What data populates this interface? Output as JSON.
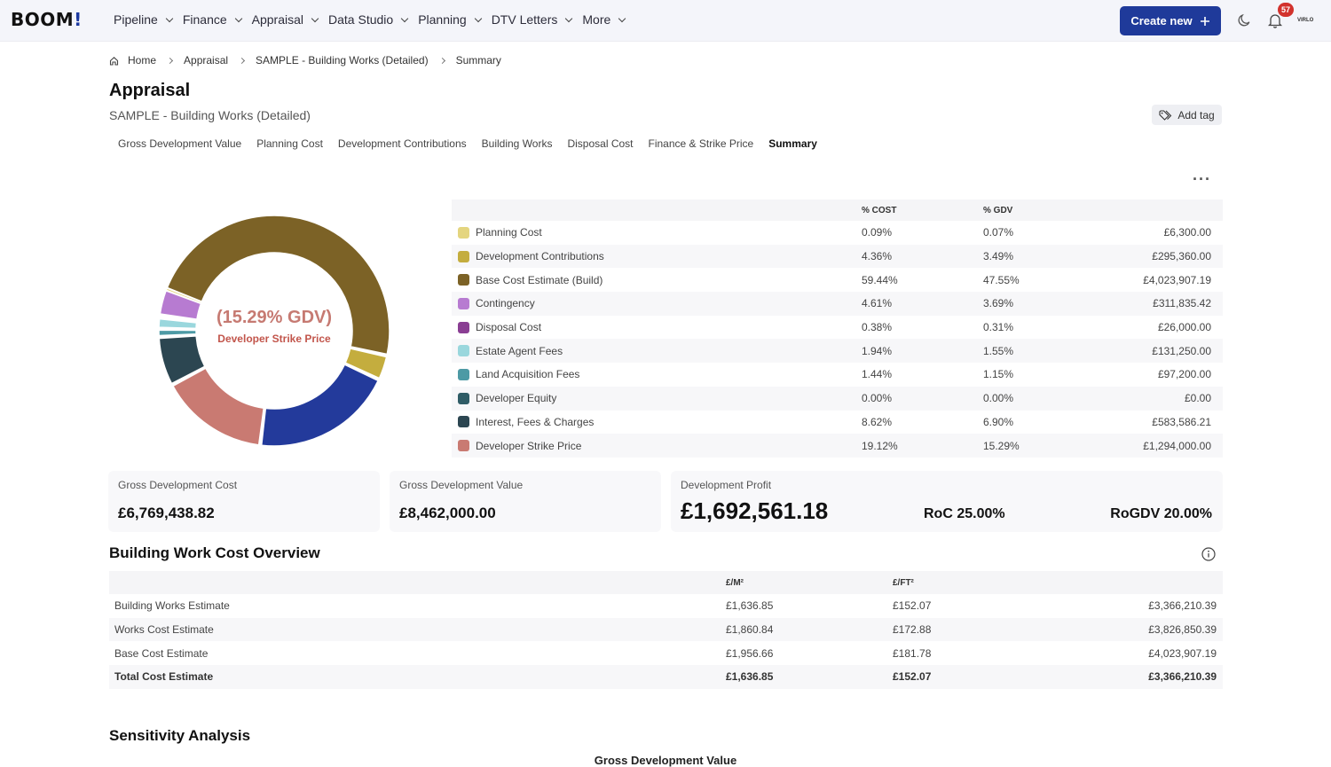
{
  "topbar": {
    "logo": "BOOM",
    "logo_bang": "!",
    "nav": [
      "Pipeline",
      "Finance",
      "Appraisal",
      "Data Studio",
      "Planning",
      "DTV Letters",
      "More"
    ],
    "create_label": "Create new",
    "notification_count": "57",
    "avatar_text": "VIRLO"
  },
  "breadcrumb": {
    "home": "Home",
    "items": [
      "Appraisal",
      "SAMPLE - Building Works (Detailed)",
      "Summary"
    ]
  },
  "page": {
    "title": "Appraisal",
    "subtitle": "SAMPLE - Building Works (Detailed)",
    "add_tag": "Add tag"
  },
  "tabs": [
    "Gross Development Value",
    "Planning Cost",
    "Development Contributions",
    "Building Works",
    "Disposal Cost",
    "Finance & Strike Price",
    "Summary"
  ],
  "active_tab": "Summary",
  "donut": {
    "center_main": "(15.29% GDV)",
    "center_sub": "Developer Strike Price"
  },
  "cost_table": {
    "headers": {
      "label": "",
      "pct_cost": "% COST",
      "pct_gdv": "% GDV",
      "amount": ""
    },
    "rows": [
      {
        "label": "Planning Cost",
        "color": "#e4d57f",
        "pct_cost": "0.09%",
        "pct_gdv": "0.07%",
        "amount": "£6,300.00",
        "share": 0.07
      },
      {
        "label": "Development Contributions",
        "color": "#c4ad3e",
        "pct_cost": "4.36%",
        "pct_gdv": "3.49%",
        "amount": "£295,360.00",
        "share": 3.49
      },
      {
        "label": "Base Cost Estimate (Build)",
        "color": "#7c6226",
        "pct_cost": "59.44%",
        "pct_gdv": "47.55%",
        "amount": "£4,023,907.19",
        "share": 47.55
      },
      {
        "label": "Contingency",
        "color": "#b77bd1",
        "pct_cost": "4.61%",
        "pct_gdv": "3.69%",
        "amount": "£311,835.42",
        "share": 3.69
      },
      {
        "label": "Disposal Cost",
        "color": "#8a3e93",
        "pct_cost": "0.38%",
        "pct_gdv": "0.31%",
        "amount": "£26,000.00",
        "share": 0.31
      },
      {
        "label": "Estate Agent Fees",
        "color": "#9ad7dd",
        "pct_cost": "1.94%",
        "pct_gdv": "1.55%",
        "amount": "£131,250.00",
        "share": 1.55
      },
      {
        "label": "Land Acquisition Fees",
        "color": "#4d9aa5",
        "pct_cost": "1.44%",
        "pct_gdv": "1.15%",
        "amount": "£97,200.00",
        "share": 1.15
      },
      {
        "label": "Developer Equity",
        "color": "#2f5c66",
        "pct_cost": "0.00%",
        "pct_gdv": "0.00%",
        "amount": "£0.00",
        "share": 0.0
      },
      {
        "label": "Interest, Fees & Charges",
        "color": "#2c4651",
        "pct_cost": "8.62%",
        "pct_gdv": "6.90%",
        "amount": "£583,586.21",
        "share": 6.9
      },
      {
        "label": "Developer Strike Price",
        "color": "#c97a72",
        "pct_cost": "19.12%",
        "pct_gdv": "15.29%",
        "amount": "£1,294,000.00",
        "share": 15.29
      }
    ],
    "remaining_color": "#233a9b",
    "remaining_share": 20.0
  },
  "cards": {
    "gdc_label": "Gross Development Cost",
    "gdc_value": "£6,769,438.82",
    "gdv_label": "Gross Development Value",
    "gdv_value": "£8,462,000.00",
    "profit_label": "Development Profit",
    "profit_value": "£1,692,561.18",
    "roc": "RoC 25.00%",
    "rogdv": "RoGDV 20.00%"
  },
  "building_works": {
    "title": "Building Work Cost Overview",
    "headers": {
      "label": "",
      "m2": "£/M²",
      "ft2": "£/FT²",
      "total": ""
    },
    "rows": [
      {
        "label": "Building Works Estimate",
        "m2": "£1,636.85",
        "ft2": "£152.07",
        "total": "£3,366,210.39"
      },
      {
        "label": "Works Cost Estimate",
        "m2": "£1,860.84",
        "ft2": "£172.88",
        "total": "£3,826,850.39"
      },
      {
        "label": "Base Cost Estimate",
        "m2": "£1,956.66",
        "ft2": "£181.78",
        "total": "£4,023,907.19"
      },
      {
        "label": "Total Cost Estimate",
        "m2": "£1,636.85",
        "ft2": "£152.07",
        "total": "£3,366,210.39"
      }
    ]
  },
  "sensitivity": {
    "title": "Sensitivity Analysis",
    "subtitle": "Gross Development Value"
  }
}
